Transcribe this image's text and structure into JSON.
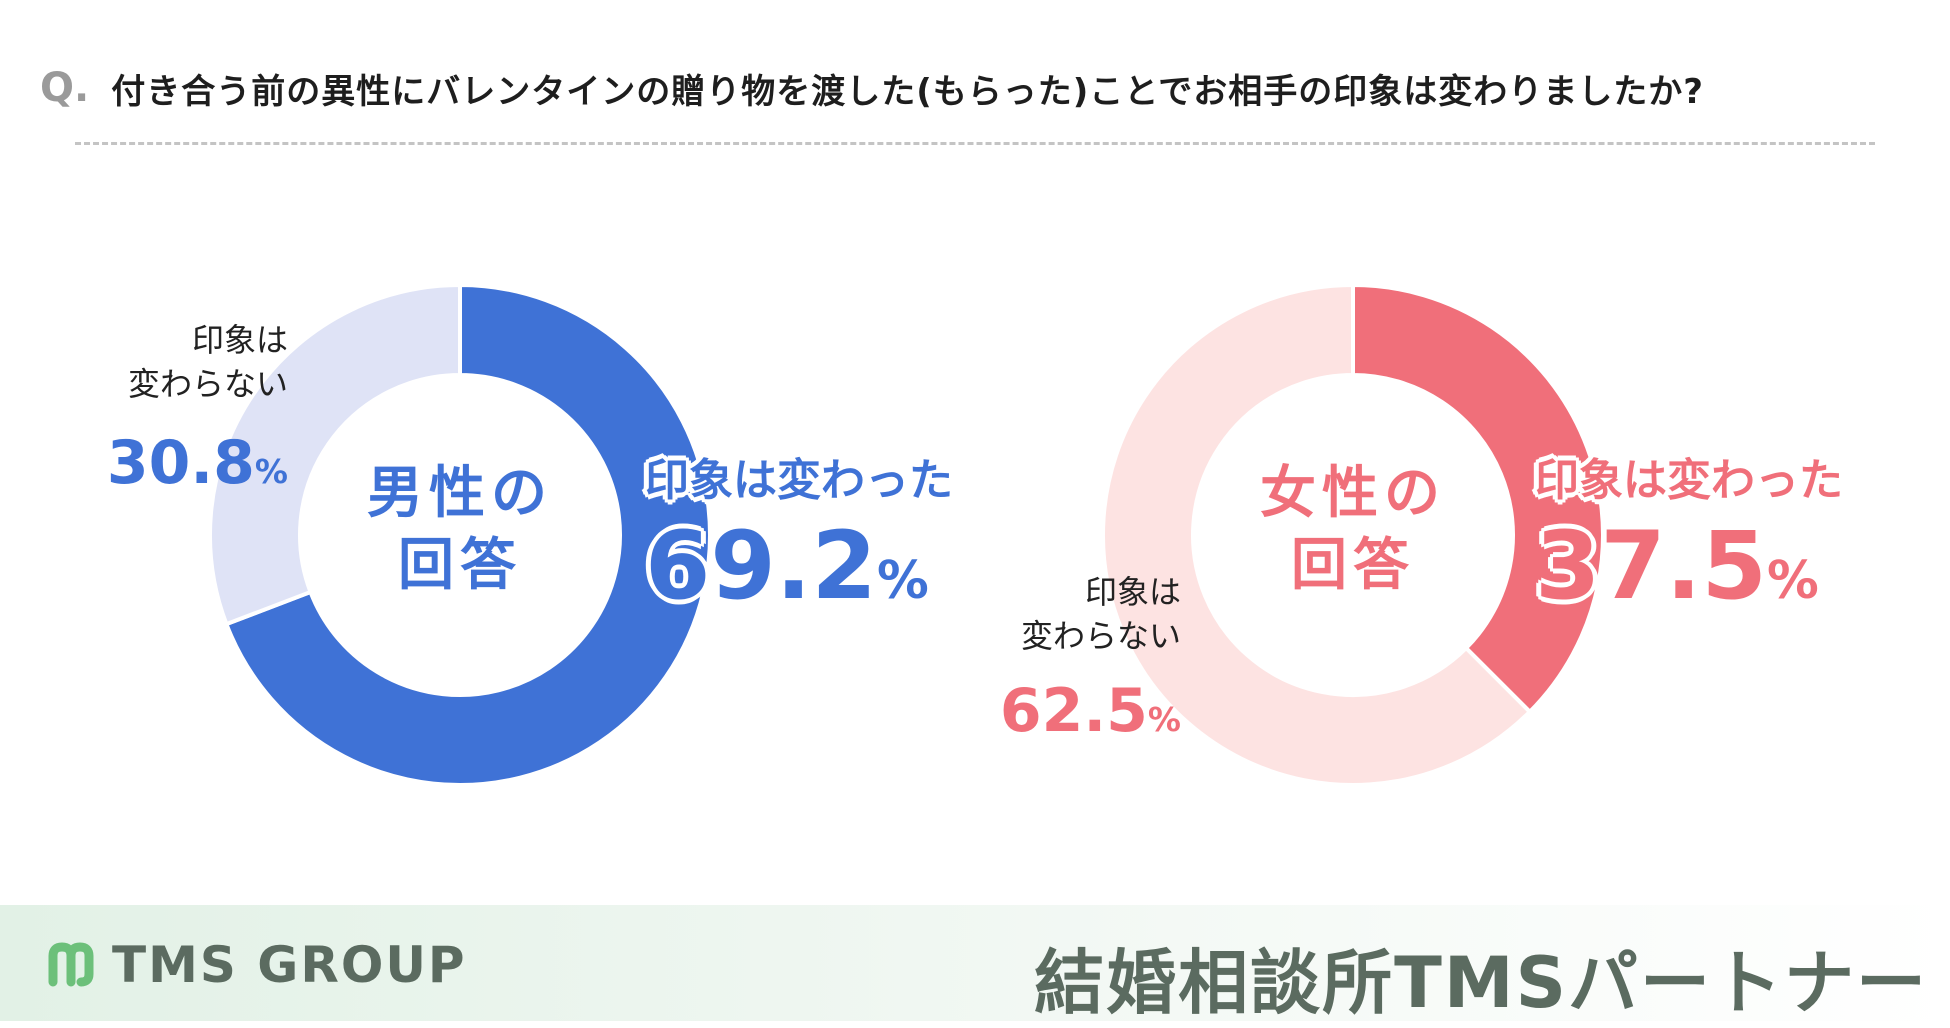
{
  "question": {
    "prefix": "Q.",
    "text": "付き合う前の異性にバレンタインの贈り物を渡した(もらった)ことでお相手の印象は変わりましたか?"
  },
  "chart_data": [
    {
      "type": "pie",
      "variant": "donut",
      "center_label": [
        "男性の",
        "回答"
      ],
      "categories": [
        "印象は変わった",
        "印象は変わらない"
      ],
      "values": [
        69.2,
        30.8
      ],
      "unit": "%",
      "colors": [
        "#3f72d6",
        "#dfe3f6"
      ],
      "labels": {
        "changed_title": "印象は変わった",
        "changed_value": "69.2",
        "unchanged_line1": "印象は",
        "unchanged_line2": "変わらない",
        "unchanged_value": "30.8",
        "unit": "%"
      }
    },
    {
      "type": "pie",
      "variant": "donut",
      "center_label": [
        "女性の",
        "回答"
      ],
      "categories": [
        "印象は変わった",
        "印象は変わらない"
      ],
      "values": [
        37.5,
        62.5
      ],
      "unit": "%",
      "colors": [
        "#f06f7a",
        "#fde3e2"
      ],
      "labels": {
        "changed_title": "印象は変わった",
        "changed_value": "37.5",
        "unchanged_line1": "印象は",
        "unchanged_line2": "変わらない",
        "unchanged_value": "62.5",
        "unit": "%"
      }
    }
  ],
  "colors": {
    "male_accent": "#3f72d6",
    "female_accent": "#f06f7a",
    "footer_text": "#5b6b60",
    "logo_green": "#6cc07a"
  },
  "footer": {
    "logo_text": "TMS GROUP",
    "logo_icon": "tms-m-logo",
    "brand": "結婚相談所TMSパートナー"
  }
}
